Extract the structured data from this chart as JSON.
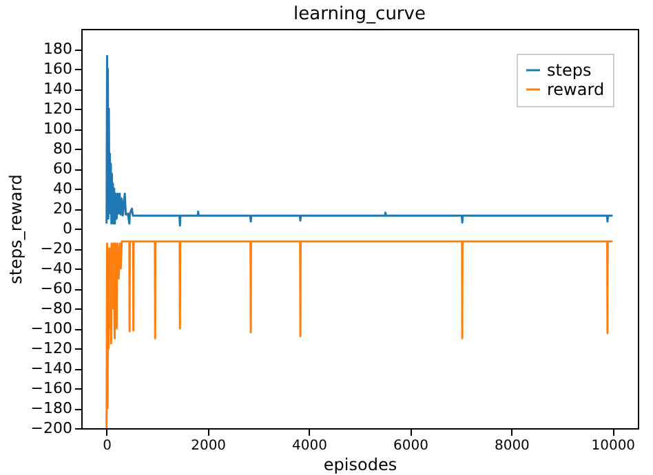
{
  "chart_data": {
    "type": "line",
    "title": "learning_curve",
    "xlabel": "episodes",
    "ylabel": "steps_reward",
    "xlim": [
      -500,
      10500
    ],
    "ylim": [
      -200,
      200
    ],
    "xticks": [
      0,
      2000,
      4000,
      6000,
      8000,
      10000
    ],
    "yticks": [
      -200,
      -180,
      -160,
      -140,
      -120,
      -100,
      -80,
      -60,
      -40,
      -20,
      0,
      20,
      40,
      60,
      80,
      100,
      120,
      140,
      160,
      180
    ],
    "grid": false,
    "legend": "top right",
    "marker": "none",
    "line_style": "solid",
    "series": [
      {
        "name": "steps",
        "color": "#1f77b4",
        "x": [
          0,
          10,
          20,
          25,
          35,
          45,
          55,
          65,
          75,
          85,
          95,
          105,
          115,
          125,
          135,
          150,
          165,
          180,
          200,
          220,
          240,
          260,
          280,
          300,
          320,
          360,
          380,
          420,
          450,
          460,
          500,
          520,
          1440,
          1450,
          1460,
          1800,
          1810,
          1820,
          2840,
          2850,
          2860,
          3820,
          3830,
          3840,
          5500,
          5510,
          5520,
          7020,
          7030,
          7040,
          9890,
          9900,
          9910,
          10000
        ],
        "values": [
          5,
          173,
          20,
          160,
          10,
          120,
          30,
          75,
          15,
          65,
          5,
          55,
          20,
          45,
          5,
          40,
          5,
          35,
          10,
          35,
          15,
          35,
          14,
          30,
          13,
          35,
          14,
          15,
          5,
          15,
          20,
          13,
          13,
          3,
          13,
          13,
          17,
          13,
          13,
          7,
          13,
          13,
          8,
          13,
          13,
          16,
          13,
          13,
          6,
          13,
          13,
          7,
          13,
          13
        ]
      },
      {
        "name": "reward",
        "color": "#ff7f0e",
        "x": [
          0,
          10,
          20,
          30,
          40,
          50,
          60,
          70,
          90,
          100,
          130,
          140,
          160,
          170,
          200,
          210,
          240,
          260,
          280,
          300,
          450,
          455,
          460,
          525,
          530,
          535,
          955,
          960,
          965,
          1445,
          1450,
          1455,
          2845,
          2850,
          2855,
          3825,
          3830,
          3835,
          7025,
          7030,
          7035,
          9895,
          9900,
          9905,
          10000
        ],
        "values": [
          -200,
          -15,
          -180,
          -30,
          -120,
          -20,
          -100,
          -20,
          -115,
          -15,
          -80,
          -15,
          -110,
          -15,
          -100,
          -15,
          -50,
          -15,
          -40,
          -13,
          -13,
          -103,
          -13,
          -13,
          -102,
          -13,
          -13,
          -110,
          -13,
          -13,
          -100,
          -13,
          -13,
          -104,
          -13,
          -13,
          -108,
          -13,
          -13,
          -110,
          -13,
          -13,
          -105,
          -13,
          -13
        ]
      }
    ]
  }
}
